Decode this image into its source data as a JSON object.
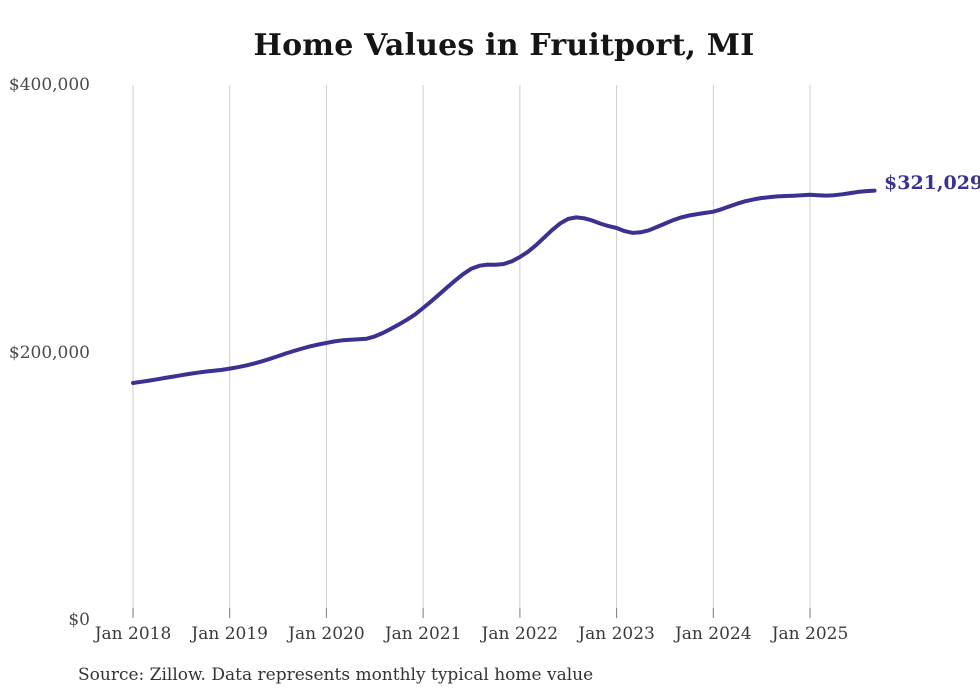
{
  "chart": {
    "title": "Home Values in Fruitport, MI",
    "source": "Source: Zillow. Data represents monthly typical home value",
    "end_label": "$321,029",
    "line_color": "#3a3191",
    "grid_color": "#cdcdcd",
    "tick_color": "#7a7a7a",
    "title_color": "#151515"
  },
  "chart_data": {
    "type": "line",
    "title": "Home Values in Fruitport, MI",
    "series_name": "Monthly typical home value (ZHVI)",
    "legend_position": "none",
    "grid": "vertical-only",
    "annotation_last_value": "$321,029",
    "ylim": [
      0,
      400000
    ],
    "y_tick_values": [
      0,
      200000,
      400000
    ],
    "y_tick_labels": [
      "$0",
      "$200,000",
      "$400,000"
    ],
    "x_tick_labels": [
      "Jan 2018",
      "Jan 2019",
      "Jan 2020",
      "Jan 2021",
      "Jan 2022",
      "Jan 2023",
      "Jan 2024",
      "Jan 2025"
    ],
    "x": [
      "2018-01",
      "2018-02",
      "2018-03",
      "2018-04",
      "2018-05",
      "2018-06",
      "2018-07",
      "2018-08",
      "2018-09",
      "2018-10",
      "2018-11",
      "2018-12",
      "2019-01",
      "2019-02",
      "2019-03",
      "2019-04",
      "2019-05",
      "2019-06",
      "2019-07",
      "2019-08",
      "2019-09",
      "2019-10",
      "2019-11",
      "2019-12",
      "2020-01",
      "2020-02",
      "2020-03",
      "2020-04",
      "2020-05",
      "2020-06",
      "2020-07",
      "2020-08",
      "2020-09",
      "2020-10",
      "2020-11",
      "2020-12",
      "2021-01",
      "2021-02",
      "2021-03",
      "2021-04",
      "2021-05",
      "2021-06",
      "2021-07",
      "2021-08",
      "2021-09",
      "2021-10",
      "2021-11",
      "2021-12",
      "2022-01",
      "2022-02",
      "2022-03",
      "2022-04",
      "2022-05",
      "2022-06",
      "2022-07",
      "2022-08",
      "2022-09",
      "2022-10",
      "2022-11",
      "2022-12",
      "2023-01",
      "2023-02",
      "2023-03",
      "2023-04",
      "2023-05",
      "2023-06",
      "2023-07",
      "2023-08",
      "2023-09",
      "2023-10",
      "2023-11",
      "2023-12",
      "2024-01",
      "2024-02",
      "2024-03",
      "2024-04",
      "2024-05",
      "2024-06",
      "2024-07",
      "2024-08",
      "2024-09",
      "2024-10",
      "2024-11",
      "2024-12",
      "2025-01",
      "2025-02",
      "2025-03",
      "2025-04",
      "2025-05",
      "2025-06",
      "2025-07",
      "2025-08",
      "2025-09"
    ],
    "values": [
      177200,
      178100,
      179000,
      180000,
      181000,
      182000,
      183000,
      184000,
      184900,
      185700,
      186400,
      187000,
      188000,
      189000,
      190200,
      191700,
      193400,
      195300,
      197300,
      199300,
      201200,
      203000,
      204600,
      206000,
      207200,
      208300,
      209100,
      209600,
      209900,
      210300,
      212000,
      214600,
      217700,
      221000,
      224500,
      228500,
      233300,
      238300,
      243500,
      248800,
      254000,
      258800,
      262700,
      264900,
      265700,
      265600,
      266200,
      268200,
      271400,
      275300,
      280200,
      285800,
      291500,
      296500,
      299900,
      301000,
      300300,
      298600,
      296400,
      294500,
      293100,
      290800,
      289400,
      289900,
      291400,
      293800,
      296400,
      298900,
      300900,
      302400,
      303500,
      304400,
      305300,
      307100,
      309200,
      311300,
      313100,
      314500,
      315500,
      316200,
      316700,
      317000,
      317200,
      317500,
      317900,
      317600,
      317300,
      317600,
      318300,
      319200,
      320100,
      320700,
      321029
    ]
  }
}
